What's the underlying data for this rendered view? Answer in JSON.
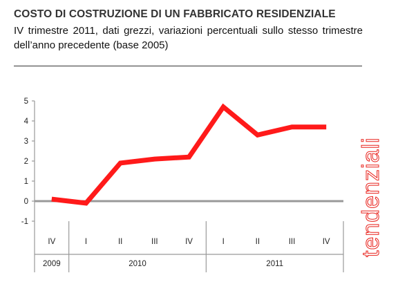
{
  "header": {
    "title": "COSTO DI COSTRUZIONE DI UN FABBRICATO RESIDENZIALE",
    "subtitle": "IV trimestre 2011, dati grezzi, variazioni percentuali sullo stesso trimestre dell’anno precedente (base 2005)"
  },
  "side_label": "tendenziali",
  "colors": {
    "series": "#ff1a1a",
    "axis": "#999999",
    "side_label": "#e8201a"
  },
  "chart_data": {
    "type": "line",
    "title": "COSTO DI COSTRUZIONE DI UN FABBRICATO RESIDENZIALE",
    "subtitle": "IV trimestre 2011, dati grezzi, variazioni percentuali sullo stesso trimestre dell’anno precedente (base 2005)",
    "categories": [
      "IV",
      "I",
      "II",
      "III",
      "IV",
      "I",
      "II",
      "III",
      "IV"
    ],
    "years": [
      {
        "label": "2009",
        "quarters": 1
      },
      {
        "label": "2010",
        "quarters": 4
      },
      {
        "label": "2011",
        "quarters": 4
      }
    ],
    "series": [
      {
        "values": [
          0.1,
          -0.1,
          1.9,
          2.1,
          2.2,
          4.7,
          3.3,
          3.7,
          3.7
        ]
      }
    ],
    "yticks": [
      -1,
      0,
      1,
      2,
      3,
      4,
      5
    ],
    "ylim": [
      -1,
      5
    ],
    "grid": false,
    "legend": "none"
  }
}
